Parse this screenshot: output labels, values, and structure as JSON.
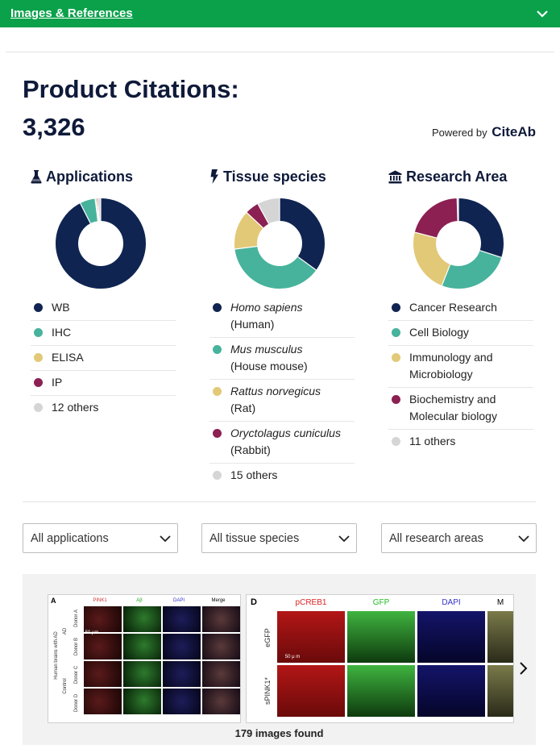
{
  "header": {
    "link_label": "Images & References"
  },
  "title": "Product Citations:",
  "citation_count": "3,326",
  "powered_by": {
    "prefix": "Powered by",
    "brand": "CiteAb"
  },
  "colors": {
    "navy": "#0f2451",
    "teal": "#47b39c",
    "gold": "#e2c977",
    "maroon": "#8c2052",
    "gray": "#d5d5d5",
    "green": "#0aa14a"
  },
  "applications": {
    "heading": "Applications",
    "icon": "flask-icon",
    "items": [
      {
        "label": "WB",
        "color": "#0f2451"
      },
      {
        "label": "IHC",
        "color": "#47b39c"
      },
      {
        "label": "ELISA",
        "color": "#e2c977"
      },
      {
        "label": "IP",
        "color": "#8c2052"
      },
      {
        "label": "12 others",
        "color": "#d5d5d5"
      }
    ],
    "donut_fractions": [
      0.925,
      0.055,
      0.005,
      0.005,
      0.01
    ]
  },
  "tissue_species": {
    "heading": "Tissue species",
    "icon": "bolt-icon",
    "items": [
      {
        "latin": "Homo sapiens",
        "common": "(Human)",
        "color": "#0f2451"
      },
      {
        "latin": "Mus musculus",
        "common": "(House mouse)",
        "color": "#47b39c"
      },
      {
        "latin": "Rattus norvegicus",
        "common": "(Rat)",
        "color": "#e2c977"
      },
      {
        "latin": "Oryctolagus cuniculus",
        "common": "(Rabbit)",
        "color": "#8c2052"
      },
      {
        "label": "15 others",
        "color": "#d5d5d5"
      }
    ],
    "donut_fractions": [
      0.35,
      0.38,
      0.14,
      0.05,
      0.08
    ]
  },
  "research_area": {
    "heading": "Research Area",
    "icon": "institution-icon",
    "items": [
      {
        "line1": "Cancer Research",
        "color": "#0f2451"
      },
      {
        "line1": "Cell Biology",
        "color": "#47b39c"
      },
      {
        "line1": "Immunology and",
        "line2": "Microbiology",
        "color": "#e2c977"
      },
      {
        "line1": "Biochemistry and",
        "line2": "Molecular biology",
        "color": "#8c2052"
      },
      {
        "line1": "11 others",
        "color": "#d5d5d5"
      }
    ],
    "donut_fractions": [
      0.3,
      0.26,
      0.23,
      0.205,
      0.005
    ]
  },
  "filters": [
    {
      "label": "All applications"
    },
    {
      "label": "All tissue species"
    },
    {
      "label": "All research areas"
    }
  ],
  "gallery": {
    "found_text": "179 images found",
    "left_panel": {
      "letter": "A",
      "columns": [
        "PINK1",
        "Aβ",
        "DAPI",
        "Merge"
      ],
      "rows": [
        "Donor A",
        "Donor B",
        "Donor C",
        "Donor D"
      ],
      "group_labels": [
        "AD",
        "Control"
      ],
      "side_label": "Human brains with AD",
      "scale_label": "50 μm"
    },
    "right_panel": {
      "letter": "D",
      "columns": [
        "pCREB1",
        "GFP",
        "DAPI",
        "M"
      ],
      "rows": [
        "eGFP",
        "sPINK1*"
      ],
      "scale_label": "50 μ m"
    }
  }
}
